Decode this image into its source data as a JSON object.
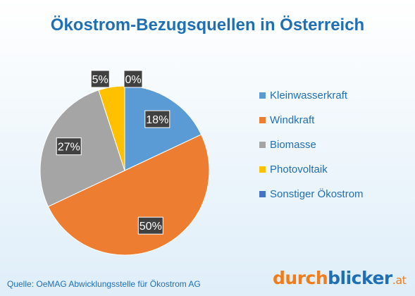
{
  "title": "Ökostrom-Bezugsquellen in Österreich",
  "source": "Quelle: OeMAG Abwicklungsstelle für Ökostrom AG",
  "logo": {
    "part1": "durch",
    "part2": "blicker",
    "part3": ".at"
  },
  "chart_data": {
    "type": "pie",
    "title": "Ökostrom-Bezugsquellen in Österreich",
    "legend_position": "right",
    "slices": [
      {
        "name": "Kleinwasserkraft",
        "value": 18,
        "label": "18%",
        "color": "#5b9bd5"
      },
      {
        "name": "Windkraft",
        "value": 50,
        "label": "50%",
        "color": "#ed7d31"
      },
      {
        "name": "Biomasse",
        "value": 27,
        "label": "27%",
        "color": "#a5a5a5"
      },
      {
        "name": "Photovoltaik",
        "value": 5,
        "label": "5%",
        "color": "#ffc000"
      },
      {
        "name": "Sonstiger Ökostrom",
        "value": 0,
        "label": "0%",
        "color": "#4472c4"
      }
    ]
  }
}
